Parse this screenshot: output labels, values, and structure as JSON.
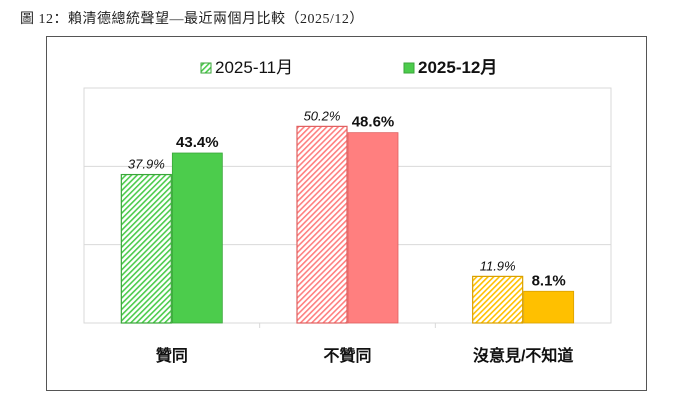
{
  "caption": "圖 12：賴清德總統聲望—最近兩個月比較（2025/12）",
  "chart_data": {
    "type": "bar",
    "title": "",
    "categories": [
      "贊同",
      "不贊同",
      "沒意見/不知道"
    ],
    "series": [
      {
        "name": "2025-11月",
        "values": [
          37.9,
          50.2,
          11.9
        ],
        "labels": [
          "37.9%",
          "50.2%",
          "11.9%"
        ],
        "pattern": "hatched"
      },
      {
        "name": "2025-12月",
        "values": [
          43.4,
          48.6,
          8.1
        ],
        "labels": [
          "43.4%",
          "48.6%",
          "8.1%"
        ],
        "pattern": "solid"
      }
    ],
    "category_colors": [
      "#4ccc4c",
      "#ff7f7f",
      "#ffc000"
    ],
    "category_edge_colors": [
      "#3aa63a",
      "#e06060",
      "#d9a000"
    ],
    "ylim": [
      0,
      60
    ],
    "gridlines": [
      20,
      40,
      60
    ],
    "grid": true,
    "legend_position": "top-center",
    "xlabel": "",
    "ylabel": ""
  }
}
